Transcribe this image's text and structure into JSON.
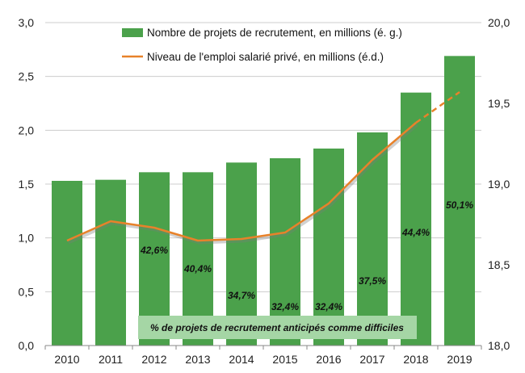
{
  "chart_data": {
    "type": "bar",
    "categories": [
      "2010",
      "2011",
      "2012",
      "2013",
      "2014",
      "2015",
      "2016",
      "2017",
      "2018",
      "2019"
    ],
    "series": [
      {
        "name": "Nombre de projets de recrutement, en millions (é. g.)",
        "type": "bar",
        "axis": "left",
        "color": "#4ba14b",
        "values": [
          1.53,
          1.54,
          1.61,
          1.61,
          1.7,
          1.74,
          1.83,
          1.98,
          2.35,
          2.69
        ]
      },
      {
        "name": "Niveau de l'emploi salarié privé, en millions (é.d.)",
        "type": "line",
        "axis": "right",
        "color": "#e8822a",
        "values": [
          18.65,
          18.77,
          18.73,
          18.65,
          18.66,
          18.7,
          18.88,
          19.15,
          19.38,
          19.57
        ],
        "dashed_from_index": 8
      }
    ],
    "bar_labels": [
      "",
      "",
      "42,6%",
      "40,4%",
      "34,7%",
      "32,4%",
      "32,4%",
      "37,5%",
      "44,4%",
      "50,1%"
    ],
    "bar_label_values": [
      null,
      null,
      42.6,
      40.4,
      34.7,
      32.4,
      32.4,
      37.5,
      44.4,
      50.1
    ],
    "bar_labels_caption": "% de projets de recrutement  anticipés comme difficiles",
    "y_left": {
      "min": 0,
      "max": 3.0,
      "ticks": [
        "0,0",
        "0,5",
        "1,0",
        "1,5",
        "2,0",
        "2,5",
        "3,0"
      ]
    },
    "y_right": {
      "min": 18.0,
      "max": 20.0,
      "ticks": [
        "18,0",
        "18,5",
        "19,0",
        "19,5",
        "20,0"
      ]
    },
    "grid": true,
    "legend_position": "top-center",
    "colors": {
      "bar": "#4ba14b",
      "line": "#e8822a",
      "grid": "#cccccc",
      "caption_bg": "#a5d6a5"
    }
  }
}
